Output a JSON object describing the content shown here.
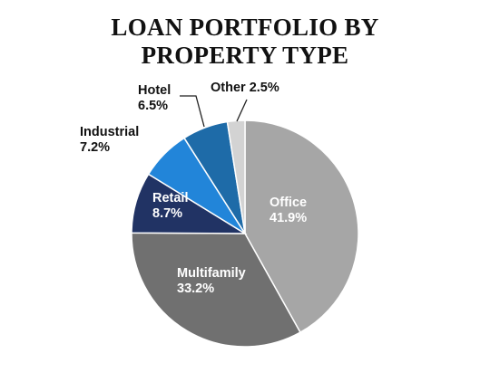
{
  "chart_data": {
    "type": "pie",
    "title_lines": [
      "LOAN PORTFOLIO BY",
      "PROPERTY TYPE"
    ],
    "slices": [
      {
        "label": "Office",
        "value": 41.9,
        "display": "41.9%",
        "color": "#A6A6A6",
        "label_color": "#ffffff",
        "label_position": "inside"
      },
      {
        "label": "Multifamily",
        "value": 33.2,
        "display": "33.2%",
        "color": "#707070",
        "label_color": "#ffffff",
        "label_position": "inside"
      },
      {
        "label": "Retail",
        "value": 8.7,
        "display": "8.7%",
        "color": "#213364",
        "label_color": "#ffffff",
        "label_position": "inside"
      },
      {
        "label": "Industrial",
        "value": 7.2,
        "display": "7.2%",
        "color": "#2285D9",
        "label_color": "#111111",
        "label_position": "outside"
      },
      {
        "label": "Hotel",
        "value": 6.5,
        "display": "6.5%",
        "color": "#1E6BA8",
        "label_color": "#111111",
        "label_position": "outside-leader"
      },
      {
        "label": "Other",
        "value": 2.5,
        "display": "2.5%",
        "color": "#D3D3D3",
        "label_color": "#111111",
        "label_position": "outside-leader"
      }
    ],
    "start_angle": "12 o'clock",
    "direction": "clockwise",
    "legend": "none"
  }
}
